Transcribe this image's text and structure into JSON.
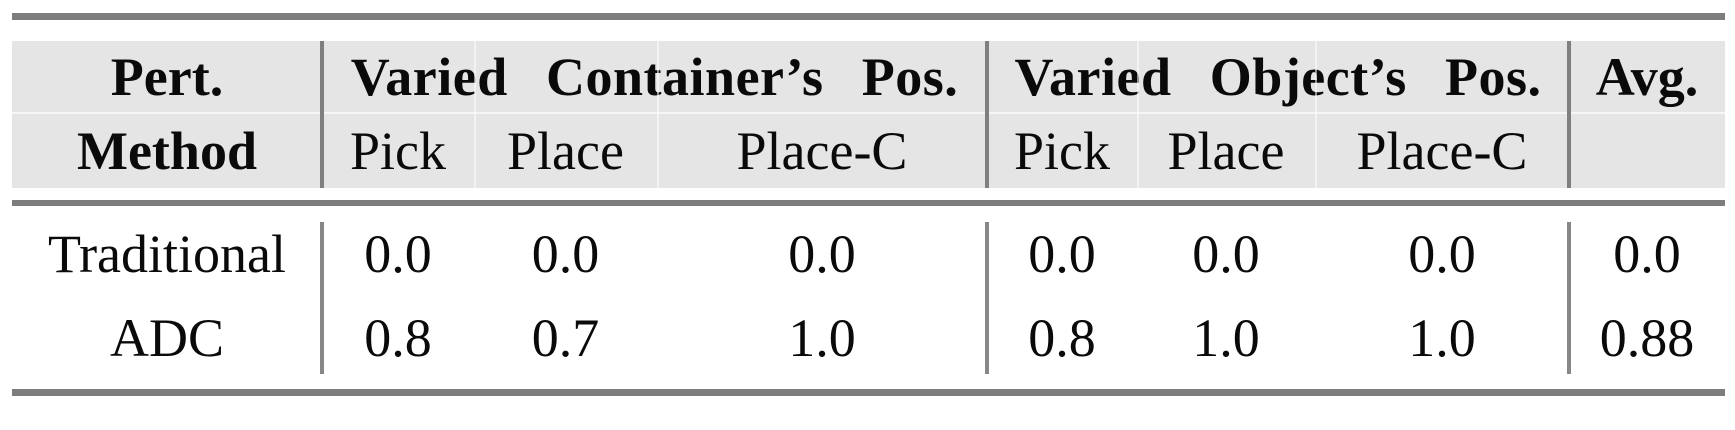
{
  "table": {
    "header": {
      "pert": "Pert.",
      "method": "Method",
      "group1": "Varied Container’s Pos.",
      "group2": "Varied Object’s Pos.",
      "avg": "Avg.",
      "sub": [
        "Pick",
        "Place",
        "Place-C",
        "Pick",
        "Place",
        "Place-C"
      ]
    },
    "rows": [
      {
        "method": "Traditional",
        "values": [
          "0.0",
          "0.0",
          "0.0",
          "0.0",
          "0.0",
          "0.0",
          "0.0"
        ]
      },
      {
        "method": "ADC",
        "values": [
          "0.8",
          "0.7",
          "1.0",
          "0.8",
          "1.0",
          "1.0",
          "0.88"
        ]
      }
    ]
  },
  "colors": {
    "page_bg": "#ffffff",
    "header_bg": "#e5e5e5",
    "rule_gray": "#7d7d7d",
    "divider_gray": "#7f7f7f",
    "text": "#0a0a0a"
  },
  "chart_data": {
    "type": "table",
    "title": "",
    "column_groups": [
      "Varied Container’s Pos.",
      "Varied Object’s Pos."
    ],
    "columns": [
      "Pert. Method",
      "Pick",
      "Place",
      "Place-C",
      "Pick",
      "Place",
      "Place-C",
      "Avg."
    ],
    "rows": [
      [
        "Traditional",
        0.0,
        0.0,
        0.0,
        0.0,
        0.0,
        0.0,
        0.0
      ],
      [
        "ADC",
        0.8,
        0.7,
        1.0,
        0.8,
        1.0,
        1.0,
        0.88
      ]
    ]
  }
}
